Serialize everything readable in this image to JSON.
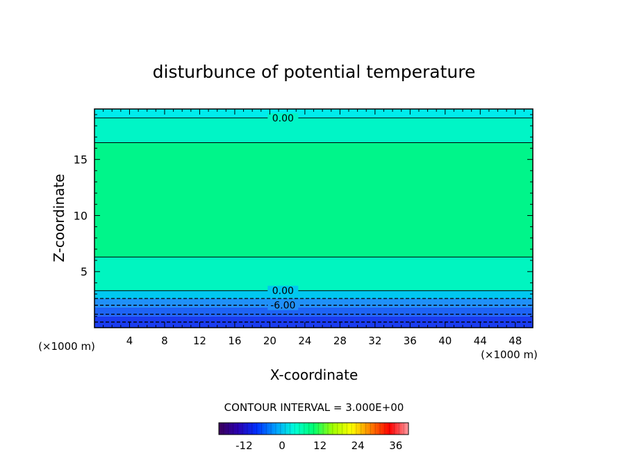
{
  "chart_data": {
    "type": "heatmap",
    "title": "disturbunce of potential temperature",
    "xlabel": "X-coordinate",
    "ylabel": "Z-coordinate",
    "x_unit_left": "(×1000 m)",
    "x_unit_right": "(×1000 m)",
    "xlim": [
      0,
      50
    ],
    "ylim": [
      0,
      19.5
    ],
    "x_ticks": [
      4,
      8,
      12,
      16,
      20,
      24,
      28,
      32,
      36,
      40,
      44,
      48
    ],
    "y_ticks": [
      5,
      10,
      15
    ],
    "contour_interval_label": "CONTOUR INTERVAL = 3.000E+00",
    "colorbar": {
      "min": -20,
      "max": 40,
      "ticks": [
        -12,
        0,
        12,
        24,
        36
      ],
      "colormap": [
        "#3b005a",
        "#2a00b0",
        "#0030ff",
        "#00a0ff",
        "#00ffd8",
        "#00ff70",
        "#a0ff00",
        "#ffff00",
        "#ff8000",
        "#ff0000",
        "#ff9aa0"
      ]
    },
    "field_bands": [
      {
        "z_bottom": 0.0,
        "z_top": 1.0,
        "value": -13.0,
        "color": "#1a3cf0"
      },
      {
        "z_bottom": 1.0,
        "z_top": 1.8,
        "value": -10.0,
        "color": "#1e64f6"
      },
      {
        "z_bottom": 1.8,
        "z_top": 2.6,
        "value": -6.5,
        "color": "#2090f8"
      },
      {
        "z_bottom": 2.6,
        "z_top": 3.3,
        "value": -3.0,
        "color": "#00c8f0"
      },
      {
        "z_bottom": 3.3,
        "z_top": 6.3,
        "value": 1.0,
        "color": "#00f5c0"
      },
      {
        "z_bottom": 6.3,
        "z_top": 16.5,
        "value": 4.0,
        "color": "#00f58a"
      },
      {
        "z_bottom": 16.5,
        "z_top": 18.7,
        "value": 1.0,
        "color": "#00f5c6"
      },
      {
        "z_bottom": 18.7,
        "z_top": 19.5,
        "value": -1.0,
        "color": "#00ecec"
      }
    ],
    "contours": [
      {
        "z": 18.7,
        "value": 0.0,
        "label": "0.00",
        "style": "solid"
      },
      {
        "z": 16.5,
        "value": 3.0,
        "label": "",
        "style": "solid"
      },
      {
        "z": 6.3,
        "value": 3.0,
        "label": "",
        "style": "solid"
      },
      {
        "z": 3.3,
        "value": 0.0,
        "label": "0.00",
        "style": "solid"
      },
      {
        "z": 2.6,
        "value": -3.0,
        "label": "",
        "style": "dashed"
      },
      {
        "z": 2.0,
        "value": -6.0,
        "label": "-6.00",
        "style": "dashed"
      },
      {
        "z": 1.2,
        "value": -9.0,
        "label": "",
        "style": "dashed"
      },
      {
        "z": 0.5,
        "value": -12.0,
        "label": "",
        "style": "dashed"
      }
    ]
  }
}
